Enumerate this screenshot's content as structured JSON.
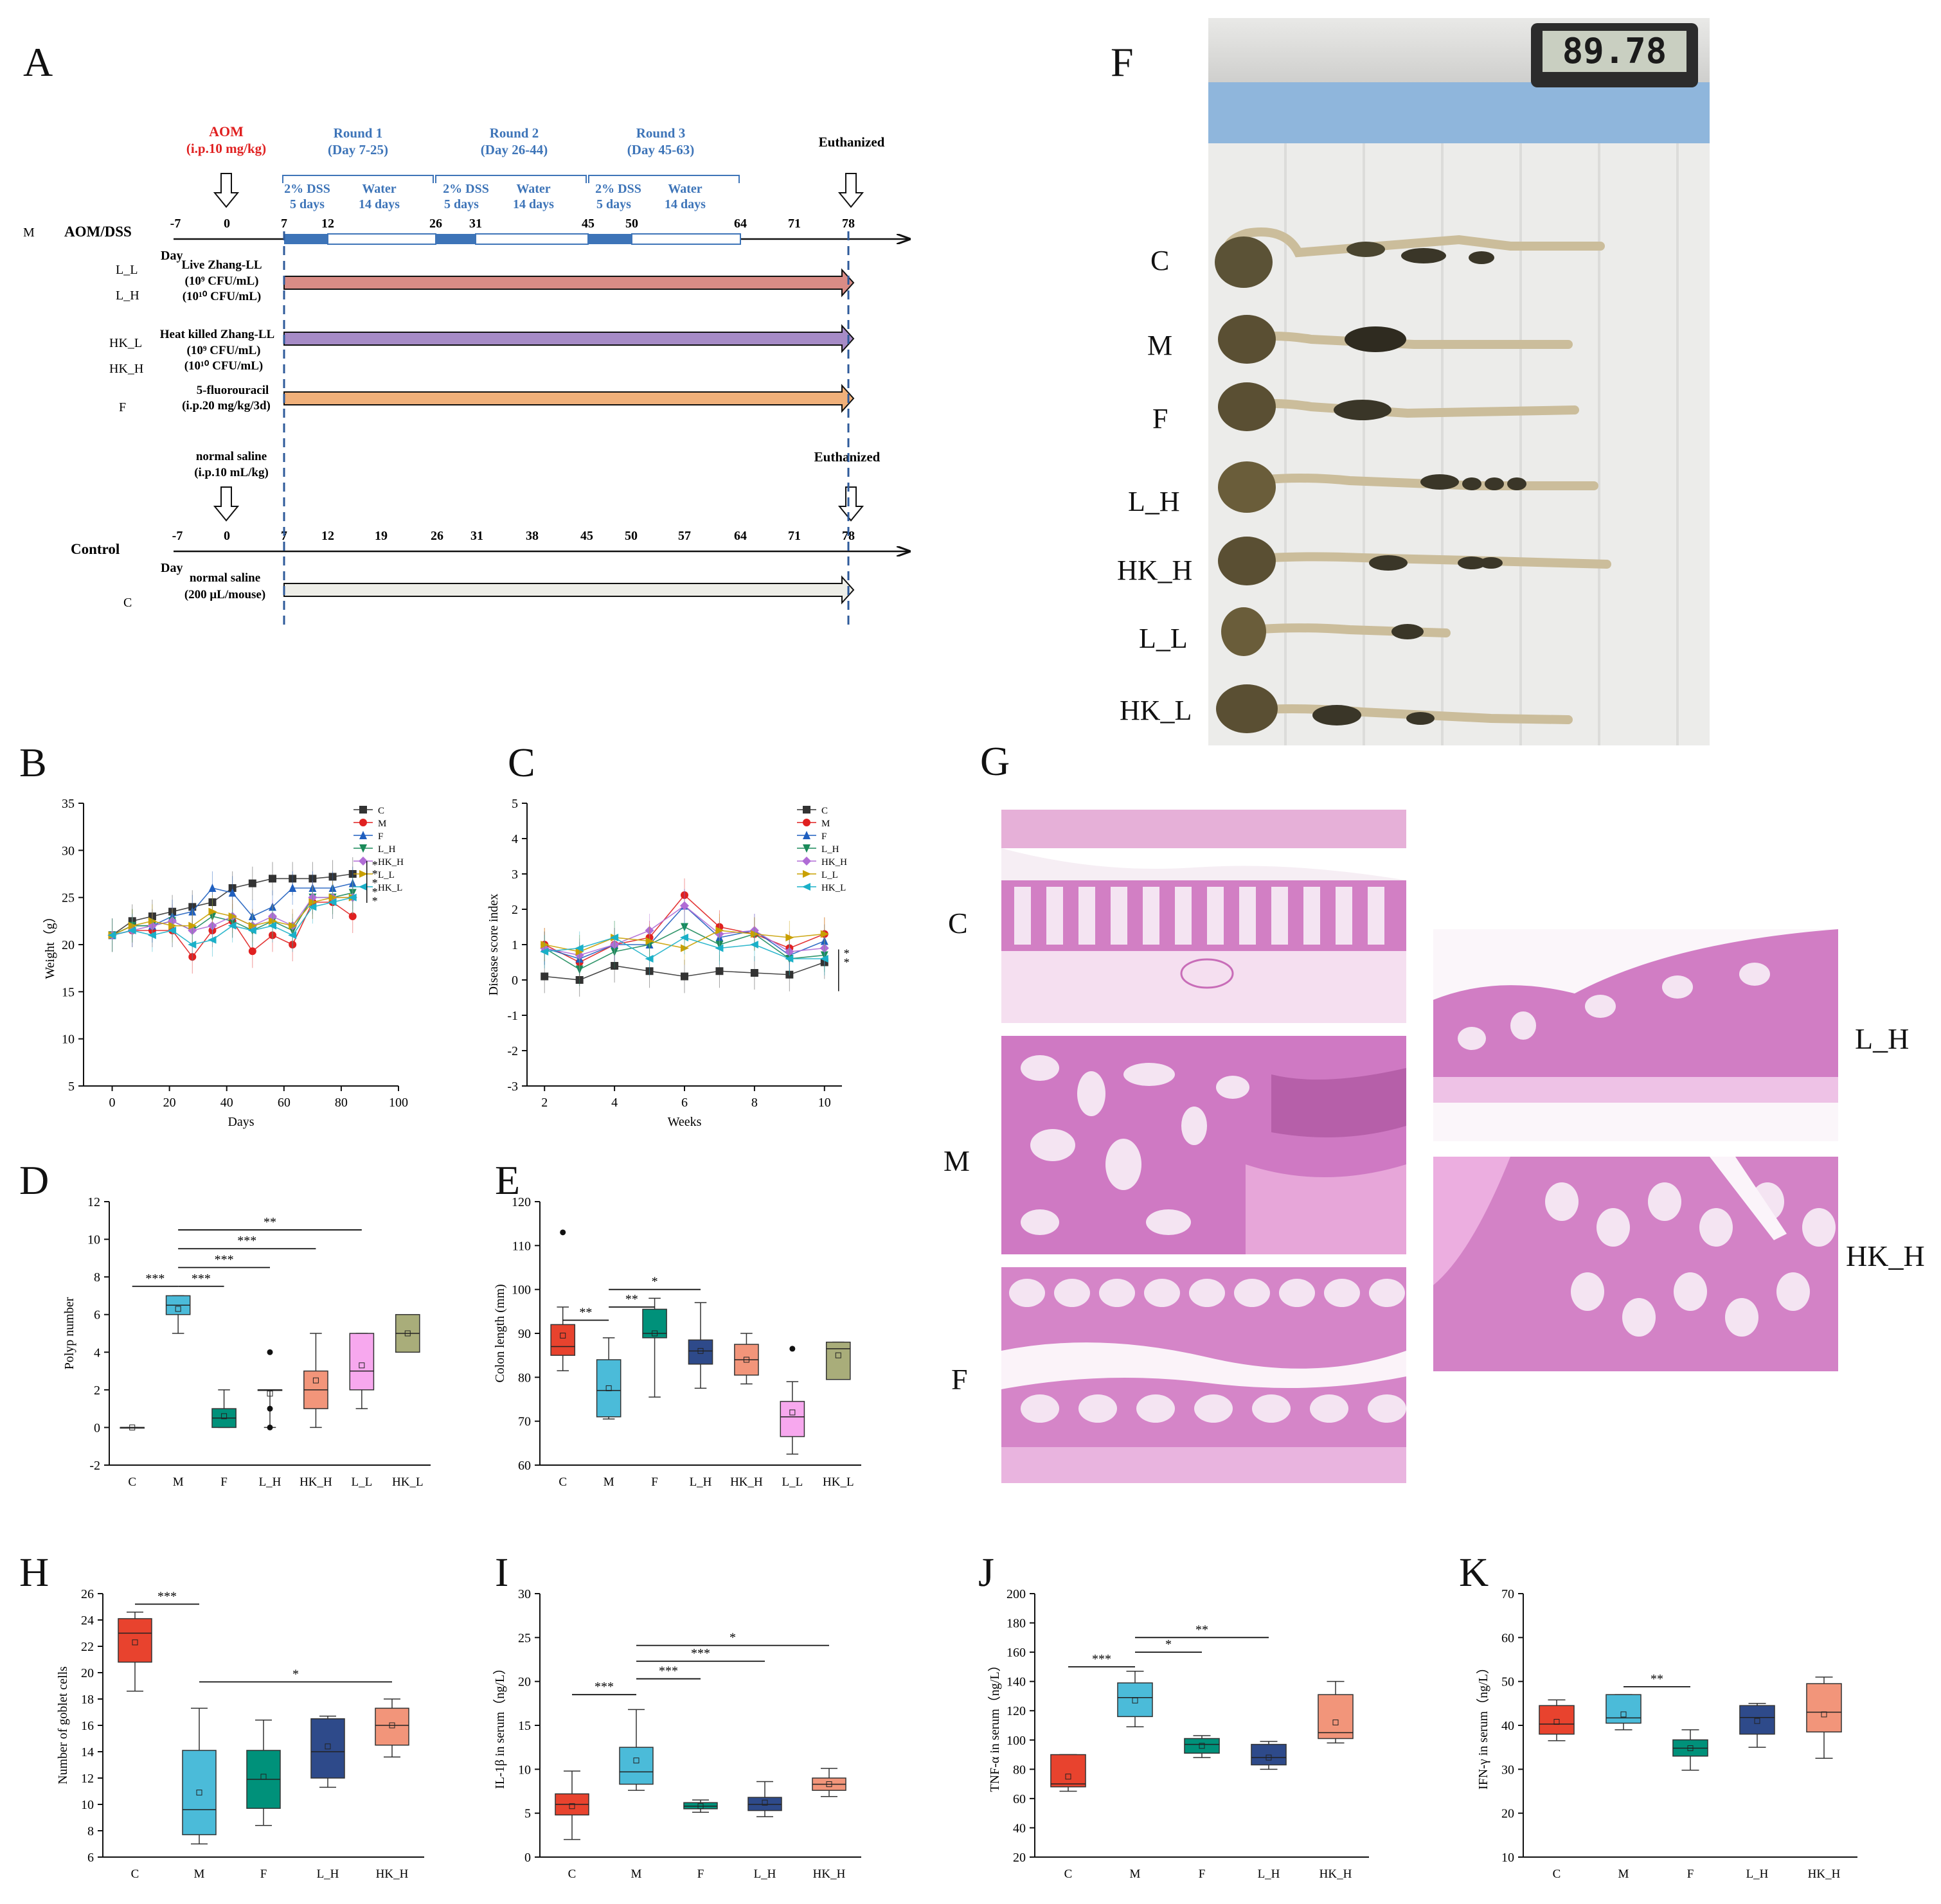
{
  "panels": {
    "A": "A",
    "B": "B",
    "C": "C",
    "D": "D",
    "E": "E",
    "F": "F",
    "G": "G",
    "H": "H",
    "I": "I",
    "J": "J",
    "K": "K"
  },
  "panelA": {
    "aom_title": "AOM",
    "aom_dose": "(i.p.10 mg/kg)",
    "rounds": [
      {
        "name": "Round 1",
        "days": "(Day 7-25)",
        "dss": "2% DSS",
        "dss_days": "5 days",
        "water": "Water",
        "water_days": "14 days"
      },
      {
        "name": "Round 2",
        "days": "(Day 26-44)",
        "dss": "2% DSS",
        "dss_days": "5 days",
        "water": "Water",
        "water_days": "14 days"
      },
      {
        "name": "Round 3",
        "days": "(Day 45-63)",
        "dss": "2% DSS",
        "dss_days": "5 days",
        "water": "Water",
        "water_days": "14 days"
      }
    ],
    "euthanized": "Euthanized",
    "m_label": "M",
    "aom_dss_label": "AOM/DSS",
    "day_label": "Day",
    "ticks_top": [
      "-7",
      "0",
      "7",
      "12",
      "26",
      "31",
      "45",
      "50",
      "64",
      "71",
      "78"
    ],
    "ticks_bottom": [
      "-7",
      "0",
      "7",
      "12",
      "19",
      "26",
      "31",
      "38",
      "45",
      "50",
      "57",
      "64",
      "71",
      "78"
    ],
    "groups": {
      "l_l": "L_L",
      "l_h": "L_H",
      "hk_l": "HK_L",
      "hk_h": "HK_H",
      "f": "F",
      "c": "C",
      "live_title": "Live Zhang-LL",
      "live_dose1": "(10⁹ CFU/mL)",
      "live_dose2": "(10¹⁰ CFU/mL)",
      "heat_title": "Heat killed Zhang-LL",
      "heat_dose1": "(10⁹ CFU/mL)",
      "heat_dose2": "(10¹⁰ CFU/mL)",
      "fu_title": "5-fluorouracil",
      "fu_dose": "(i.p.20 mg/kg/3d)"
    },
    "saline_title": "normal saline",
    "saline_dose": "(i.p.10 mL/kg)",
    "control_label": "Control",
    "control_saline_title": "normal saline",
    "control_saline_dose": "(200 μL/mouse)",
    "colors": {
      "live": "#d98c86",
      "heat": "#a68bc6",
      "fu": "#f0b07a",
      "control": "#eeeee8",
      "dss": "#3d74b8",
      "blue_text": "#3d74b8",
      "red_text": "#e02020"
    }
  },
  "panelF": {
    "lcd": "89.78",
    "rows": [
      "C",
      "M",
      "F",
      "L_H",
      "HK_H",
      "L_L",
      "HK_L"
    ]
  },
  "panelG": {
    "left_rows": [
      "C",
      "M",
      "F"
    ],
    "right_rows": [
      "L_H",
      "HK_H"
    ]
  },
  "chart_data": [
    {
      "id": "B",
      "type": "line",
      "xlabel": "Days",
      "ylabel": "Weight（g）",
      "xlim": [
        -10,
        100
      ],
      "ylim": [
        5,
        35
      ],
      "xticks": [
        0,
        20,
        40,
        60,
        80,
        100
      ],
      "yticks": [
        5,
        10,
        15,
        20,
        25,
        30,
        35
      ],
      "x": [
        0,
        7,
        14,
        21,
        28,
        35,
        42,
        49,
        56,
        63,
        70,
        77,
        84
      ],
      "series": [
        {
          "name": "C",
          "color": "#333333",
          "marker": "square",
          "values": [
            21.0,
            22.5,
            23.0,
            23.5,
            24.0,
            24.5,
            26.0,
            26.5,
            27.0,
            27.0,
            27.0,
            27.2,
            27.5
          ]
        },
        {
          "name": "M",
          "color": "#e02020",
          "marker": "circle",
          "values": [
            21.0,
            21.5,
            21.5,
            21.5,
            18.7,
            21.5,
            22.5,
            19.3,
            21.0,
            20.0,
            24.5,
            24.5,
            23.0
          ]
        },
        {
          "name": "F",
          "color": "#1f5fbf",
          "marker": "triangle",
          "values": [
            21.0,
            22.0,
            22.0,
            23.0,
            23.5,
            26.0,
            25.5,
            23.0,
            24.0,
            26.0,
            26.0,
            26.0,
            26.5
          ]
        },
        {
          "name": "L_H",
          "color": "#1a8a5a",
          "marker": "tridown",
          "values": [
            21.0,
            22.0,
            22.0,
            22.5,
            21.5,
            23.0,
            22.5,
            21.5,
            22.5,
            21.5,
            25.0,
            25.0,
            25.5
          ]
        },
        {
          "name": "HK_H",
          "color": "#b06cd6",
          "marker": "diamond",
          "values": [
            21.0,
            21.5,
            22.0,
            22.5,
            21.5,
            22.0,
            23.0,
            22.0,
            23.0,
            22.0,
            25.0,
            25.0,
            25.0
          ]
        },
        {
          "name": "L_L",
          "color": "#c9a000",
          "marker": "triright",
          "values": [
            21.0,
            22.0,
            22.5,
            22.0,
            22.0,
            23.5,
            23.0,
            22.0,
            22.5,
            22.0,
            24.5,
            25.0,
            25.0
          ]
        },
        {
          "name": "HK_L",
          "color": "#1ab0c8",
          "marker": "trileft",
          "values": [
            21.0,
            21.5,
            21.0,
            21.5,
            20.0,
            20.5,
            22.0,
            21.5,
            22.0,
            21.0,
            24.0,
            24.5,
            25.0
          ]
        }
      ],
      "annotations": [
        "*",
        "*",
        "*",
        "*",
        "*"
      ]
    },
    {
      "id": "C",
      "type": "line",
      "xlabel": "Weeks",
      "ylabel": "Disease score index",
      "xlim": [
        1.5,
        10.5
      ],
      "ylim": [
        -3,
        5
      ],
      "xticks": [
        2,
        4,
        6,
        8,
        10
      ],
      "yticks": [
        -3,
        -2,
        -1,
        0,
        1,
        2,
        3,
        4,
        5
      ],
      "x": [
        2,
        3,
        4,
        5,
        6,
        7,
        8,
        9,
        10
      ],
      "series": [
        {
          "name": "C",
          "color": "#333333",
          "marker": "square",
          "values": [
            0.1,
            0.0,
            0.4,
            0.25,
            0.1,
            0.25,
            0.2,
            0.15,
            0.5
          ]
        },
        {
          "name": "M",
          "color": "#e02020",
          "marker": "circle",
          "values": [
            1.0,
            0.5,
            1.0,
            1.2,
            2.4,
            1.5,
            1.3,
            0.9,
            1.3
          ]
        },
        {
          "name": "F",
          "color": "#1f5fbf",
          "marker": "triangle",
          "values": [
            0.9,
            0.6,
            1.0,
            1.0,
            2.1,
            1.2,
            1.4,
            0.7,
            1.1
          ]
        },
        {
          "name": "L_H",
          "color": "#1a8a5a",
          "marker": "tridown",
          "values": [
            0.9,
            0.3,
            0.8,
            1.0,
            1.5,
            1.0,
            1.3,
            0.6,
            0.7
          ]
        },
        {
          "name": "HK_H",
          "color": "#b06cd6",
          "marker": "diamond",
          "values": [
            0.9,
            0.7,
            1.0,
            1.4,
            2.1,
            1.3,
            1.4,
            0.8,
            0.9
          ]
        },
        {
          "name": "L_L",
          "color": "#c9a000",
          "marker": "triright",
          "values": [
            1.0,
            0.8,
            1.2,
            1.1,
            0.9,
            1.4,
            1.3,
            1.2,
            1.3
          ]
        },
        {
          "name": "HK_L",
          "color": "#1ab0c8",
          "marker": "trileft",
          "values": [
            0.8,
            0.9,
            1.2,
            0.6,
            1.2,
            0.9,
            1.0,
            0.6,
            0.6
          ]
        }
      ],
      "annotations": [
        "*",
        "*"
      ]
    },
    {
      "id": "D",
      "type": "box",
      "ylabel": "Polyp number",
      "ylim": [
        -2,
        12
      ],
      "yticks": [
        -2,
        0,
        2,
        4,
        6,
        8,
        10,
        12
      ],
      "categories": [
        "C",
        "M",
        "F",
        "L_H",
        "HK_H",
        "L_L",
        "HK_L"
      ],
      "colors": [
        "#ffffff",
        "#4bbbd9",
        "#00917a",
        "#ffffff",
        "#f2957a",
        "#f7a8ee",
        "#a9ad7a"
      ],
      "boxes": [
        {
          "min": 0,
          "q1": 0,
          "med": 0,
          "q3": 0,
          "max": 0,
          "mean": 0
        },
        {
          "min": 5,
          "q1": 6,
          "med": 6.5,
          "q3": 7,
          "max": 7,
          "mean": 6.3
        },
        {
          "min": 0,
          "q1": 0,
          "med": 0.5,
          "q3": 1,
          "max": 2,
          "mean": 0.6
        },
        {
          "min": 0,
          "q1": 2,
          "med": 2,
          "q3": 2,
          "max": 2,
          "mean": 1.8,
          "outliers": [
            4,
            1,
            0
          ]
        },
        {
          "min": 0,
          "q1": 1,
          "med": 2,
          "q3": 3,
          "max": 5,
          "mean": 2.5
        },
        {
          "min": 1,
          "q1": 2,
          "med": 3,
          "q3": 5,
          "max": 5,
          "mean": 3.3
        },
        {
          "min": 4,
          "q1": 4,
          "med": 5,
          "q3": 6,
          "max": 6,
          "mean": 5.0
        }
      ],
      "sig": [
        {
          "from": 0,
          "to": 1,
          "label": "***",
          "y": 7.5
        },
        {
          "from": 1,
          "to": 2,
          "label": "***",
          "y": 7.5
        },
        {
          "from": 1,
          "to": 3,
          "label": "***",
          "y": 8.5
        },
        {
          "from": 1,
          "to": 4,
          "label": "***",
          "y": 9.5
        },
        {
          "from": 1,
          "to": 5,
          "label": "**",
          "y": 10.5
        }
      ]
    },
    {
      "id": "E",
      "type": "box",
      "ylabel": "Colon length (mm)",
      "ylim": [
        60,
        120
      ],
      "yticks": [
        60,
        70,
        80,
        90,
        100,
        110,
        120
      ],
      "categories": [
        "C",
        "M",
        "F",
        "L_H",
        "HK_H",
        "L_L",
        "HK_L"
      ],
      "colors": [
        "#e8432e",
        "#4bbbd9",
        "#00917a",
        "#2e4a8a",
        "#f2957a",
        "#f7a8ee",
        "#a9ad7a"
      ],
      "boxes": [
        {
          "min": 81.5,
          "q1": 85,
          "med": 87,
          "q3": 92,
          "max": 96,
          "mean": 89.5,
          "outliers": [
            113
          ]
        },
        {
          "min": 70.5,
          "q1": 71,
          "med": 77,
          "q3": 84,
          "max": 89,
          "mean": 77.5
        },
        {
          "min": 75.5,
          "q1": 89,
          "med": 90,
          "q3": 95.5,
          "max": 98,
          "mean": 90
        },
        {
          "min": 77.5,
          "q1": 83,
          "med": 86,
          "q3": 88.5,
          "max": 97,
          "mean": 86
        },
        {
          "min": 78.5,
          "q1": 80.5,
          "med": 84,
          "q3": 87.5,
          "max": 90,
          "mean": 84
        },
        {
          "min": 62.5,
          "q1": 66.5,
          "med": 71,
          "q3": 74.5,
          "max": 79,
          "mean": 72,
          "outliers": [
            86.5
          ]
        },
        {
          "min": 79.5,
          "q1": 79.5,
          "med": 86.5,
          "q3": 88,
          "max": 88,
          "mean": 85
        }
      ],
      "sig": [
        {
          "from": 0,
          "to": 1,
          "label": "**",
          "y": 93
        },
        {
          "from": 1,
          "to": 2,
          "label": "**",
          "y": 96
        },
        {
          "from": 1,
          "to": 3,
          "label": "*",
          "y": 100
        }
      ]
    },
    {
      "id": "H",
      "type": "box",
      "ylabel": "Number of goblet cells",
      "ylim": [
        6,
        26
      ],
      "yticks": [
        6,
        8,
        10,
        12,
        14,
        16,
        18,
        20,
        22,
        24,
        26
      ],
      "categories": [
        "C",
        "M",
        "F",
        "L_H",
        "HK_H"
      ],
      "colors": [
        "#e8432e",
        "#4bbbd9",
        "#00917a",
        "#2e4a8a",
        "#f2957a"
      ],
      "boxes": [
        {
          "min": 18.6,
          "q1": 20.8,
          "med": 23.0,
          "q3": 24.1,
          "max": 24.6,
          "mean": 22.3
        },
        {
          "min": 7.0,
          "q1": 7.7,
          "med": 9.6,
          "q3": 14.1,
          "max": 17.3,
          "mean": 10.9
        },
        {
          "min": 8.4,
          "q1": 9.7,
          "med": 11.9,
          "q3": 14.1,
          "max": 16.4,
          "mean": 12.1
        },
        {
          "min": 11.3,
          "q1": 12.0,
          "med": 14.0,
          "q3": 16.5,
          "max": 16.7,
          "mean": 14.4
        },
        {
          "min": 13.6,
          "q1": 14.5,
          "med": 16.0,
          "q3": 17.3,
          "max": 18.0,
          "mean": 16.0
        }
      ],
      "sig": [
        {
          "from": 0,
          "to": 1,
          "label": "***",
          "y": 25.2
        },
        {
          "from": 1,
          "to": 4,
          "label": "*",
          "y": 19.3
        }
      ]
    },
    {
      "id": "I",
      "type": "box",
      "ylabel": "IL-1β in serum（ng/L）",
      "ylim": [
        0,
        30
      ],
      "yticks": [
        0,
        5,
        10,
        15,
        20,
        25,
        30
      ],
      "categories": [
        "C",
        "M",
        "F",
        "L_H",
        "HK_H"
      ],
      "colors": [
        "#e8432e",
        "#4bbbd9",
        "#00917a",
        "#2e4a8a",
        "#f2957a"
      ],
      "boxes": [
        {
          "min": 2.0,
          "q1": 4.8,
          "med": 6.0,
          "q3": 7.2,
          "max": 9.8,
          "mean": 5.8
        },
        {
          "min": 7.6,
          "q1": 8.3,
          "med": 9.7,
          "q3": 12.5,
          "max": 16.8,
          "mean": 11.0
        },
        {
          "min": 5.1,
          "q1": 5.5,
          "med": 5.8,
          "q3": 6.2,
          "max": 6.5,
          "mean": 5.8
        },
        {
          "min": 4.6,
          "q1": 5.3,
          "med": 6.0,
          "q3": 6.8,
          "max": 8.6,
          "mean": 6.2
        },
        {
          "min": 6.9,
          "q1": 7.6,
          "med": 8.3,
          "q3": 9.0,
          "max": 10.1,
          "mean": 8.3
        }
      ],
      "sig": [
        {
          "from": 0,
          "to": 1,
          "label": "***",
          "y": 18.5
        },
        {
          "from": 1,
          "to": 2,
          "label": "***",
          "y": 20.3
        },
        {
          "from": 1,
          "to": 3,
          "label": "***",
          "y": 22.3
        },
        {
          "from": 1,
          "to": 4,
          "label": "*",
          "y": 24.1
        }
      ]
    },
    {
      "id": "J",
      "type": "box",
      "ylabel": "TNF-α in serum（ng/L）",
      "ylim": [
        20,
        200
      ],
      "yticks": [
        20,
        40,
        60,
        80,
        100,
        120,
        140,
        160,
        180,
        200
      ],
      "categories": [
        "C",
        "M",
        "F",
        "L_H",
        "HK_H"
      ],
      "colors": [
        "#e8432e",
        "#4bbbd9",
        "#00917a",
        "#2e4a8a",
        "#f2957a"
      ],
      "boxes": [
        {
          "min": 65,
          "q1": 68,
          "med": 70,
          "q3": 90,
          "max": 90,
          "mean": 75
        },
        {
          "min": 109,
          "q1": 116,
          "med": 129,
          "q3": 139,
          "max": 147,
          "mean": 127
        },
        {
          "min": 88,
          "q1": 91,
          "med": 97,
          "q3": 101,
          "max": 103,
          "mean": 96
        },
        {
          "min": 80,
          "q1": 83,
          "med": 88,
          "q3": 97,
          "max": 99,
          "mean": 88
        },
        {
          "min": 98,
          "q1": 101,
          "med": 105,
          "q3": 131,
          "max": 140,
          "mean": 112
        }
      ],
      "sig": [
        {
          "from": 0,
          "to": 1,
          "label": "***",
          "y": 150
        },
        {
          "from": 1,
          "to": 2,
          "label": "*",
          "y": 160
        },
        {
          "from": 1,
          "to": 3,
          "label": "**",
          "y": 170
        }
      ]
    },
    {
      "id": "K",
      "type": "box",
      "ylabel": "IFN-γ in serum（ng/L）",
      "ylim": [
        10,
        70
      ],
      "yticks": [
        10,
        20,
        30,
        40,
        50,
        60,
        70
      ],
      "categories": [
        "C",
        "M",
        "F",
        "L_H",
        "HK_H"
      ],
      "colors": [
        "#e8432e",
        "#4bbbd9",
        "#00917a",
        "#2e4a8a",
        "#f2957a"
      ],
      "boxes": [
        {
          "min": 36.5,
          "q1": 38.0,
          "med": 40.3,
          "q3": 44.5,
          "max": 45.8,
          "mean": 40.8
        },
        {
          "min": 39.0,
          "q1": 40.5,
          "med": 41.7,
          "q3": 47.0,
          "max": 47.0,
          "mean": 42.5
        },
        {
          "min": 29.8,
          "q1": 33.0,
          "med": 34.8,
          "q3": 36.7,
          "max": 39.0,
          "mean": 34.8
        },
        {
          "min": 35.0,
          "q1": 38.0,
          "med": 41.8,
          "q3": 44.5,
          "max": 45.0,
          "mean": 41.0
        },
        {
          "min": 32.5,
          "q1": 38.5,
          "med": 43.0,
          "q3": 49.5,
          "max": 51.0,
          "mean": 42.5
        }
      ],
      "sig": [
        {
          "from": 1,
          "to": 2,
          "label": "**",
          "y": 48.8
        }
      ]
    }
  ]
}
